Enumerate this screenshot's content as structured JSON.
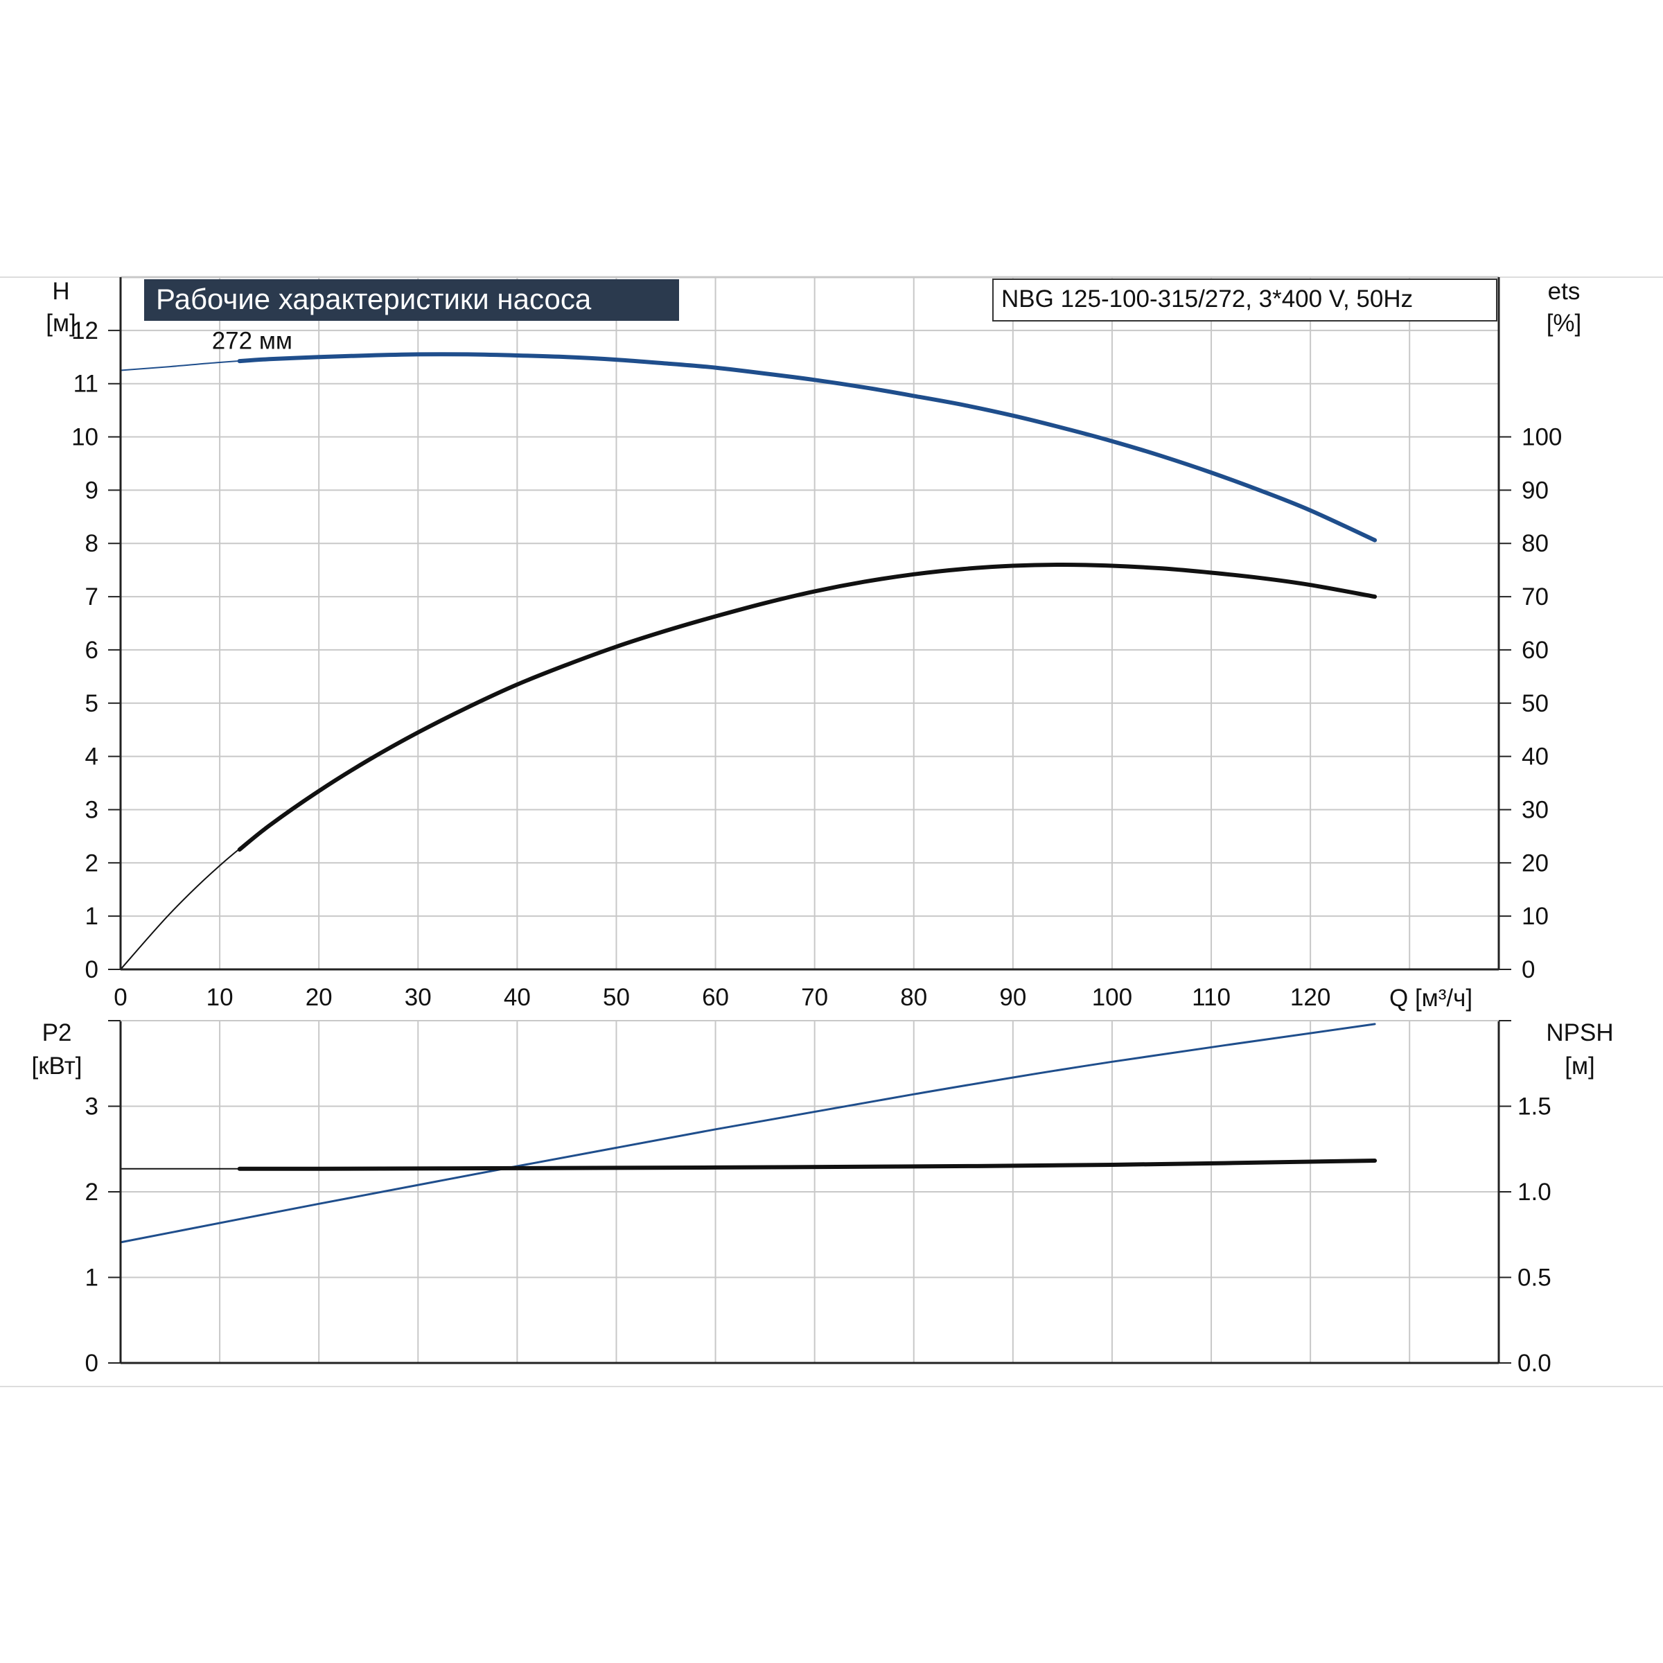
{
  "title": "Рабочие характеристики насоса",
  "model_label": "NBG 125-100-315/272, 3*400 V, 50Hz",
  "colors": {
    "blue": "#1f4e8c",
    "black": "#111111",
    "grid": "#c8c8c8",
    "title_bg": "#2b3a4e"
  },
  "chart_data": [
    {
      "type": "line",
      "panel": "top",
      "title": "Рабочие характеристики насоса",
      "xlabel": "Q [м³/ч]",
      "ylabel_left": "H\n[м]",
      "ylabel_right": "ets\n[%]",
      "xlim": [
        0,
        139
      ],
      "ylim_left": [
        0,
        13
      ],
      "ylim_right": [
        0,
        130
      ],
      "x_ticks": [
        0,
        10,
        20,
        30,
        40,
        50,
        60,
        70,
        80,
        90,
        100,
        110,
        120
      ],
      "y_left_ticks": [
        0,
        1,
        2,
        3,
        4,
        5,
        6,
        7,
        8,
        9,
        10,
        11,
        12
      ],
      "y_right_ticks": [
        0,
        10,
        20,
        30,
        40,
        50,
        60,
        70,
        80,
        90,
        100
      ],
      "grid": true,
      "annotations": [
        {
          "text": "272 мм",
          "x": 12,
          "y": 11.65
        }
      ],
      "series": [
        {
          "axis": "left",
          "color": "#1f4e8c",
          "style": "thick",
          "from_x": 12,
          "x": [
            0,
            5,
            10,
            15,
            20,
            25,
            30,
            35,
            40,
            45,
            50,
            55,
            60,
            65,
            70,
            75,
            80,
            85,
            90,
            95,
            100,
            105,
            110,
            115,
            120,
            126.5
          ],
          "y": [
            11.25,
            11.32,
            11.4,
            11.46,
            11.5,
            11.53,
            11.55,
            11.55,
            11.53,
            11.5,
            11.45,
            11.38,
            11.3,
            11.19,
            11.07,
            10.93,
            10.77,
            10.6,
            10.4,
            10.17,
            9.92,
            9.64,
            9.33,
            8.99,
            8.62,
            8.06
          ]
        },
        {
          "axis": "right",
          "color": "#111111",
          "style": "thick",
          "from_x": 12,
          "x": [
            0,
            5,
            10,
            15,
            20,
            25,
            30,
            35,
            40,
            45,
            50,
            55,
            60,
            65,
            70,
            75,
            80,
            85,
            90,
            95,
            100,
            105,
            110,
            115,
            120,
            126.5
          ],
          "y": [
            0,
            10.5,
            19.5,
            27,
            33.5,
            39.3,
            44.5,
            49.2,
            53.5,
            57.2,
            60.6,
            63.6,
            66.3,
            68.8,
            71,
            72.8,
            74.2,
            75.2,
            75.8,
            76,
            75.8,
            75.3,
            74.5,
            73.5,
            72.2,
            70
          ]
        }
      ]
    },
    {
      "type": "line",
      "panel": "bottom",
      "ylabel_left": "P2\n[кВт]",
      "ylabel_right": "NPSH\n[м]",
      "xlim": [
        0,
        139
      ],
      "ylim_left": [
        0,
        4
      ],
      "ylim_right": [
        0,
        2
      ],
      "y_left_ticks": [
        0,
        1,
        2,
        3
      ],
      "y_right_ticks": [
        "0.0",
        "0.5",
        "1.0",
        "1.5"
      ],
      "grid": true,
      "series": [
        {
          "axis": "left",
          "color": "#1f4e8c",
          "style": "thin",
          "from_x": 0,
          "x": [
            0,
            20,
            40,
            60,
            80,
            100,
            126.5
          ],
          "y": [
            1.41,
            1.86,
            2.3,
            2.73,
            3.14,
            3.52,
            3.96
          ]
        },
        {
          "axis": "right",
          "color": "#111111",
          "style": "thick",
          "from_x": 12,
          "x": [
            0,
            20,
            40,
            60,
            80,
            100,
            126.5
          ],
          "y": [
            1.135,
            1.135,
            1.138,
            1.142,
            1.148,
            1.158,
            1.182
          ]
        }
      ]
    }
  ]
}
